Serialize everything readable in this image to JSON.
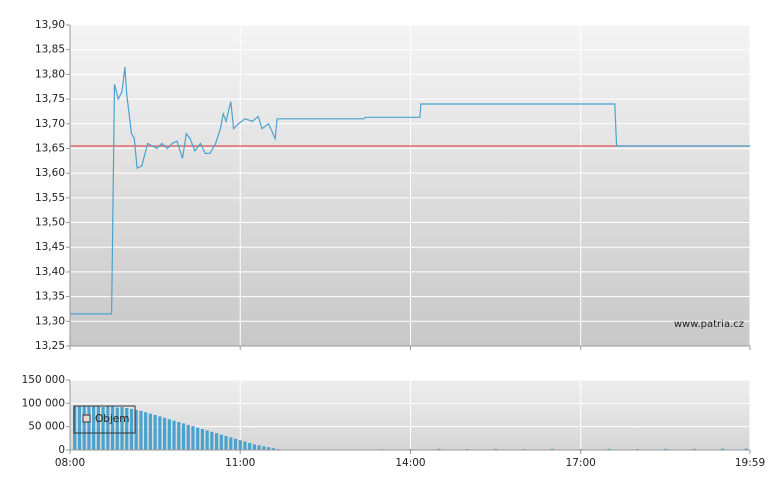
{
  "chart_data": [
    {
      "type": "line",
      "watermark": "www.patria.cz",
      "xlim": [
        "08:00",
        "19:59"
      ],
      "xticks": [
        "08:00",
        "11:00",
        "14:00",
        "17:00",
        "19:59"
      ],
      "ylim": [
        13.25,
        13.9
      ],
      "yticks": [
        {
          "value": 13.25,
          "label": "13,25"
        },
        {
          "value": 13.3,
          "label": "13,30"
        },
        {
          "value": 13.35,
          "label": "13,35"
        },
        {
          "value": 13.4,
          "label": "13,40"
        },
        {
          "value": 13.45,
          "label": "13,45"
        },
        {
          "value": 13.5,
          "label": "13,50"
        },
        {
          "value": 13.55,
          "label": "13,55"
        },
        {
          "value": 13.6,
          "label": "13,60"
        },
        {
          "value": 13.65,
          "label": "13,65"
        },
        {
          "value": 13.7,
          "label": "13,70"
        },
        {
          "value": 13.75,
          "label": "13,75"
        },
        {
          "value": 13.8,
          "label": "13,80"
        },
        {
          "value": 13.85,
          "label": "13,85"
        },
        {
          "value": 13.9,
          "label": "13,90"
        }
      ],
      "grid": true,
      "reference_line": 13.655,
      "reference_color": "#e05050",
      "x": [
        "08:00",
        "08:44",
        "08:47",
        "08:51",
        "08:55",
        "08:58",
        "09:00",
        "09:05",
        "09:08",
        "09:11",
        "09:16",
        "09:22",
        "09:27",
        "09:32",
        "09:37",
        "09:43",
        "09:48",
        "09:53",
        "09:59",
        "10:03",
        "10:07",
        "10:12",
        "10:18",
        "10:23",
        "10:28",
        "10:34",
        "10:39",
        "10:42",
        "10:45",
        "10:50",
        "10:53",
        "10:58",
        "11:05",
        "11:13",
        "11:19",
        "11:23",
        "11:30",
        "11:37",
        "11:39",
        "13:11",
        "13:12",
        "14:10",
        "14:11",
        "17:36",
        "17:38",
        "19:59"
      ],
      "series": [
        {
          "color": "#4aa3cf",
          "values": [
            13.315,
            13.315,
            13.78,
            13.75,
            13.765,
            13.815,
            13.76,
            13.68,
            13.67,
            13.61,
            13.615,
            13.66,
            13.655,
            13.65,
            13.66,
            13.65,
            13.66,
            13.665,
            13.63,
            13.68,
            13.67,
            13.645,
            13.66,
            13.64,
            13.64,
            13.66,
            13.69,
            13.72,
            13.705,
            13.745,
            13.69,
            13.7,
            13.71,
            13.705,
            13.715,
            13.69,
            13.7,
            13.67,
            13.71,
            13.71,
            13.713,
            13.713,
            13.74,
            13.74,
            13.655,
            13.655
          ]
        }
      ]
    },
    {
      "type": "bar",
      "xlim": [
        "08:00",
        "19:59"
      ],
      "xticks": [
        "08:00",
        "11:00",
        "14:00",
        "17:00",
        "19:59"
      ],
      "ylim": [
        0,
        150000
      ],
      "yticks": [
        0,
        {
          "value": 50000,
          "label": "50 000"
        },
        {
          "value": 100000,
          "label": "100 000"
        },
        {
          "value": 150000,
          "label": "150 000"
        }
      ],
      "grid": true,
      "x": [
        "08:05",
        "08:10",
        "08:15",
        "08:20",
        "08:25",
        "08:30",
        "08:35",
        "08:40",
        "08:45",
        "08:50",
        "08:55",
        "09:00",
        "09:05",
        "09:10",
        "09:15",
        "09:20",
        "09:25",
        "09:30",
        "09:35",
        "09:40",
        "09:45",
        "09:50",
        "09:55",
        "10:00",
        "10:05",
        "10:10",
        "10:15",
        "10:20",
        "10:25",
        "10:30",
        "10:35",
        "10:40",
        "10:45",
        "10:50",
        "10:55",
        "11:00",
        "11:05",
        "11:10",
        "11:15",
        "11:20",
        "11:25",
        "11:30",
        "11:35",
        "11:40",
        "11:45",
        "12:30",
        "13:00",
        "13:30",
        "14:00",
        "14:30",
        "15:00",
        "15:30",
        "16:00",
        "16:30",
        "17:00",
        "17:30",
        "18:00",
        "18:30",
        "19:00",
        "19:30",
        "19:55"
      ],
      "series": [
        {
          "name": "Objem",
          "color": "#4aa3cf",
          "values": [
            95000,
            94000,
            95000,
            93000,
            95000,
            94000,
            92000,
            95000,
            93000,
            91000,
            92000,
            90000,
            88000,
            86000,
            84000,
            81000,
            78000,
            75000,
            72000,
            69000,
            66000,
            63000,
            60000,
            57000,
            54000,
            51000,
            48000,
            45000,
            42000,
            39000,
            36000,
            33000,
            30000,
            27000,
            24000,
            21000,
            18000,
            15000,
            12000,
            10000,
            8000,
            6000,
            4000,
            2000,
            1000,
            1000,
            1000,
            1500,
            2000,
            2500,
            2000,
            2500,
            2000,
            2500,
            2000,
            2500,
            2000,
            2500,
            2500,
            3000,
            3000
          ]
        }
      ]
    }
  ]
}
